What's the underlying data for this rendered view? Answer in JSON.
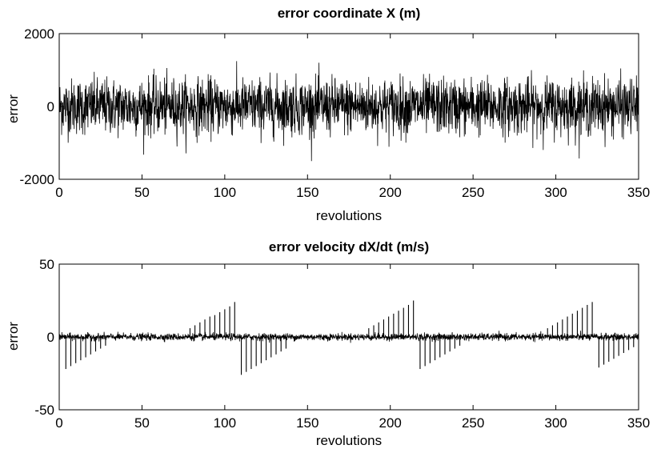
{
  "chart_data": [
    {
      "type": "line",
      "title": "error coordinate X (m)",
      "xlabel": "revolutions",
      "ylabel": "error",
      "xlim": [
        0,
        350
      ],
      "ylim": [
        -2000,
        2000
      ],
      "xticks": [
        "0",
        "50",
        "100",
        "150",
        "200",
        "250",
        "300",
        "350"
      ],
      "yticks": [
        "2000",
        "0",
        "-2000"
      ],
      "grid": false,
      "series": [
        {
          "description": "dense noise centered on 0",
          "noise_std": 380,
          "approx_envelope_min": -1500,
          "approx_envelope_max": 1550
        }
      ]
    },
    {
      "type": "line",
      "title": "error velocity dX/dt (m/s)",
      "xlabel": "revolutions",
      "ylabel": "error",
      "xlim": [
        0,
        350
      ],
      "ylim": [
        -50,
        50
      ],
      "xticks": [
        "0",
        "50",
        "100",
        "150",
        "200",
        "250",
        "300",
        "350"
      ],
      "yticks": [
        "50",
        "0",
        "-50"
      ],
      "grid": false,
      "series": [
        {
          "description": "noise band around 0 with periodic spikes",
          "noise_std": 1.2,
          "positive_spikes": [
            {
              "x": 79,
              "y": 6
            },
            {
              "x": 82,
              "y": 8
            },
            {
              "x": 85,
              "y": 10
            },
            {
              "x": 88,
              "y": 12
            },
            {
              "x": 91,
              "y": 14
            },
            {
              "x": 94,
              "y": 15
            },
            {
              "x": 97,
              "y": 17
            },
            {
              "x": 100,
              "y": 19
            },
            {
              "x": 103,
              "y": 21
            },
            {
              "x": 106,
              "y": 24
            },
            {
              "x": 187,
              "y": 6
            },
            {
              "x": 190,
              "y": 8
            },
            {
              "x": 193,
              "y": 10
            },
            {
              "x": 196,
              "y": 12
            },
            {
              "x": 199,
              "y": 14
            },
            {
              "x": 202,
              "y": 16
            },
            {
              "x": 205,
              "y": 18
            },
            {
              "x": 208,
              "y": 20
            },
            {
              "x": 211,
              "y": 22
            },
            {
              "x": 214,
              "y": 25
            },
            {
              "x": 295,
              "y": 6
            },
            {
              "x": 298,
              "y": 8
            },
            {
              "x": 301,
              "y": 10
            },
            {
              "x": 304,
              "y": 12
            },
            {
              "x": 307,
              "y": 14
            },
            {
              "x": 310,
              "y": 16
            },
            {
              "x": 313,
              "y": 18
            },
            {
              "x": 316,
              "y": 20
            },
            {
              "x": 319,
              "y": 22
            },
            {
              "x": 322,
              "y": 24
            }
          ],
          "negative_spikes": [
            {
              "x": 4,
              "y": -22
            },
            {
              "x": 7,
              "y": -20
            },
            {
              "x": 10,
              "y": -18
            },
            {
              "x": 13,
              "y": -16
            },
            {
              "x": 16,
              "y": -14
            },
            {
              "x": 19,
              "y": -12
            },
            {
              "x": 22,
              "y": -10
            },
            {
              "x": 25,
              "y": -8
            },
            {
              "x": 28,
              "y": -6
            },
            {
              "x": 110,
              "y": -26
            },
            {
              "x": 113,
              "y": -24
            },
            {
              "x": 116,
              "y": -22
            },
            {
              "x": 119,
              "y": -20
            },
            {
              "x": 122,
              "y": -18
            },
            {
              "x": 125,
              "y": -16
            },
            {
              "x": 128,
              "y": -14
            },
            {
              "x": 131,
              "y": -12
            },
            {
              "x": 134,
              "y": -10
            },
            {
              "x": 137,
              "y": -8
            },
            {
              "x": 218,
              "y": -22
            },
            {
              "x": 221,
              "y": -20
            },
            {
              "x": 224,
              "y": -18
            },
            {
              "x": 227,
              "y": -16
            },
            {
              "x": 230,
              "y": -14
            },
            {
              "x": 233,
              "y": -12
            },
            {
              "x": 236,
              "y": -10
            },
            {
              "x": 239,
              "y": -8
            },
            {
              "x": 242,
              "y": -6
            },
            {
              "x": 326,
              "y": -21
            },
            {
              "x": 329,
              "y": -19
            },
            {
              "x": 332,
              "y": -17
            },
            {
              "x": 335,
              "y": -15
            },
            {
              "x": 338,
              "y": -13
            },
            {
              "x": 341,
              "y": -11
            },
            {
              "x": 344,
              "y": -9
            },
            {
              "x": 347,
              "y": -7
            }
          ]
        }
      ]
    }
  ]
}
